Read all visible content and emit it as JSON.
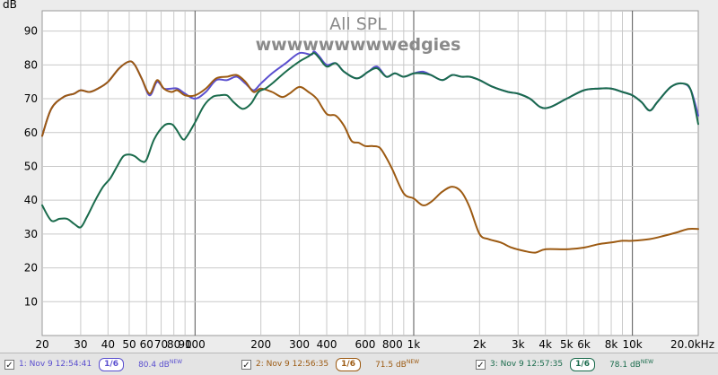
{
  "chart_data": {
    "type": "line",
    "title": "All SPL",
    "subtitle": "wwwwwwwwwedgies",
    "ylabel": "dB",
    "xlabel": "",
    "xscale": "log",
    "xlim": [
      20,
      20000
    ],
    "ylim": [
      0,
      96
    ],
    "grid": true,
    "y_ticks": [
      10,
      20,
      30,
      40,
      50,
      60,
      70,
      80,
      90
    ],
    "x_ticks": [
      {
        "value": 20,
        "label": "20"
      },
      {
        "value": 30,
        "label": "30"
      },
      {
        "value": 40,
        "label": "40"
      },
      {
        "value": 50,
        "label": "50"
      },
      {
        "value": 60,
        "label": "60"
      },
      {
        "value": 70,
        "label": "70"
      },
      {
        "value": 80,
        "label": "80"
      },
      {
        "value": 90,
        "label": "90"
      },
      {
        "value": 100,
        "label": "100"
      },
      {
        "value": 200,
        "label": "200"
      },
      {
        "value": 300,
        "label": "300"
      },
      {
        "value": 400,
        "label": "400"
      },
      {
        "value": 600,
        "label": "600"
      },
      {
        "value": 800,
        "label": "800"
      },
      {
        "value": 1000,
        "label": "1k"
      },
      {
        "value": 2000,
        "label": "2k"
      },
      {
        "value": 3000,
        "label": "3k"
      },
      {
        "value": 4000,
        "label": "4k"
      },
      {
        "value": 5000,
        "label": "5k"
      },
      {
        "value": 6000,
        "label": "6k"
      },
      {
        "value": 8000,
        "label": "8k"
      },
      {
        "value": 10000,
        "label": "10k"
      },
      {
        "value": 20000,
        "label": "20.0kHz"
      }
    ],
    "series": [
      {
        "name": "1: Nov 9 12:54:41",
        "color": "#5a4fcf",
        "points": [
          [
            20,
            59
          ],
          [
            22,
            67
          ],
          [
            25,
            70.5
          ],
          [
            28,
            71.5
          ],
          [
            30,
            72.5
          ],
          [
            33,
            72
          ],
          [
            36,
            73
          ],
          [
            40,
            75
          ],
          [
            45,
            79
          ],
          [
            50,
            81
          ],
          [
            53,
            80
          ],
          [
            57,
            76
          ],
          [
            62,
            71
          ],
          [
            67,
            75
          ],
          [
            72,
            73
          ],
          [
            78,
            73
          ],
          [
            83,
            73
          ],
          [
            90,
            71.5
          ],
          [
            100,
            70
          ],
          [
            112,
            72
          ],
          [
            125,
            75.5
          ],
          [
            140,
            75.5
          ],
          [
            155,
            76.5
          ],
          [
            170,
            74.5
          ],
          [
            185,
            72.5
          ],
          [
            200,
            74.5
          ],
          [
            225,
            77.5
          ],
          [
            260,
            80.5
          ],
          [
            300,
            83.5
          ],
          [
            340,
            83
          ],
          [
            350,
            84
          ],
          [
            370,
            82.5
          ],
          [
            400,
            80
          ],
          [
            440,
            80.5
          ],
          [
            480,
            78
          ],
          [
            550,
            76
          ],
          [
            620,
            78
          ],
          [
            680,
            79.5
          ],
          [
            750,
            76.5
          ],
          [
            820,
            77.5
          ],
          [
            900,
            76.5
          ],
          [
            1000,
            77.5
          ],
          [
            1100,
            78
          ],
          [
            1200,
            77
          ],
          [
            1350,
            75.5
          ],
          [
            1500,
            77
          ],
          [
            1650,
            76.5
          ],
          [
            1800,
            76.5
          ],
          [
            2000,
            75.5
          ],
          [
            2300,
            73.5
          ],
          [
            2700,
            72
          ],
          [
            3000,
            71.5
          ],
          [
            3400,
            70
          ],
          [
            3800,
            67.5
          ],
          [
            4200,
            67.5
          ],
          [
            5000,
            70
          ],
          [
            6000,
            72.5
          ],
          [
            7000,
            73
          ],
          [
            8000,
            73
          ],
          [
            9000,
            72
          ],
          [
            10000,
            71
          ],
          [
            11000,
            69
          ],
          [
            12000,
            66.5
          ],
          [
            13000,
            69
          ],
          [
            15000,
            73.5
          ],
          [
            17000,
            74.5
          ],
          [
            18500,
            72.5
          ],
          [
            20000,
            65
          ]
        ]
      },
      {
        "name": "2: Nov 9 12:56:35",
        "color": "#9c5a12",
        "points": [
          [
            20,
            59
          ],
          [
            22,
            67
          ],
          [
            25,
            70.5
          ],
          [
            28,
            71.5
          ],
          [
            30,
            72.5
          ],
          [
            33,
            72
          ],
          [
            36,
            73
          ],
          [
            40,
            75
          ],
          [
            45,
            79
          ],
          [
            50,
            81
          ],
          [
            53,
            80
          ],
          [
            57,
            76
          ],
          [
            62,
            71.5
          ],
          [
            67,
            75.5
          ],
          [
            72,
            73
          ],
          [
            78,
            72
          ],
          [
            83,
            72.5
          ],
          [
            90,
            71
          ],
          [
            100,
            71
          ],
          [
            112,
            73
          ],
          [
            125,
            76
          ],
          [
            140,
            76.5
          ],
          [
            155,
            77
          ],
          [
            170,
            75
          ],
          [
            185,
            72
          ],
          [
            200,
            73
          ],
          [
            225,
            72
          ],
          [
            250,
            70.5
          ],
          [
            270,
            71.5
          ],
          [
            300,
            73.5
          ],
          [
            330,
            72
          ],
          [
            360,
            70
          ],
          [
            400,
            65.5
          ],
          [
            440,
            65
          ],
          [
            480,
            62
          ],
          [
            520,
            57.5
          ],
          [
            560,
            57
          ],
          [
            600,
            56
          ],
          [
            650,
            56
          ],
          [
            700,
            55.5
          ],
          [
            750,
            52.5
          ],
          [
            800,
            49
          ],
          [
            900,
            42
          ],
          [
            1000,
            40.5
          ],
          [
            1100,
            38.5
          ],
          [
            1200,
            39.5
          ],
          [
            1350,
            42.5
          ],
          [
            1500,
            44
          ],
          [
            1650,
            42.5
          ],
          [
            1800,
            38
          ],
          [
            2000,
            30
          ],
          [
            2200,
            28.5
          ],
          [
            2500,
            27.5
          ],
          [
            2800,
            26
          ],
          [
            3200,
            25
          ],
          [
            3600,
            24.5
          ],
          [
            4000,
            25.5
          ],
          [
            5000,
            25.5
          ],
          [
            6000,
            26
          ],
          [
            7000,
            27
          ],
          [
            8000,
            27.5
          ],
          [
            9000,
            28
          ],
          [
            10000,
            28
          ],
          [
            12000,
            28.5
          ],
          [
            14000,
            29.5
          ],
          [
            16000,
            30.5
          ],
          [
            18000,
            31.5
          ],
          [
            20000,
            31.5
          ]
        ]
      },
      {
        "name": "3: Nov 9 12:57:35",
        "color": "#1a6b4c",
        "points": [
          [
            20,
            38.5
          ],
          [
            22,
            34
          ],
          [
            24,
            34.5
          ],
          [
            26,
            34.5
          ],
          [
            28,
            33
          ],
          [
            30,
            32
          ],
          [
            32,
            35
          ],
          [
            35,
            40
          ],
          [
            38,
            44
          ],
          [
            41,
            46.5
          ],
          [
            44,
            50
          ],
          [
            47,
            53
          ],
          [
            50,
            53.5
          ],
          [
            53,
            53
          ],
          [
            57,
            51.5
          ],
          [
            60,
            52
          ],
          [
            65,
            58
          ],
          [
            72,
            62
          ],
          [
            78,
            62.5
          ],
          [
            82,
            61
          ],
          [
            88,
            58
          ],
          [
            92,
            59
          ],
          [
            100,
            63
          ],
          [
            110,
            68
          ],
          [
            120,
            70.5
          ],
          [
            130,
            71
          ],
          [
            140,
            71
          ],
          [
            150,
            69
          ],
          [
            165,
            67
          ],
          [
            180,
            68.5
          ],
          [
            195,
            72
          ],
          [
            210,
            73
          ],
          [
            230,
            75
          ],
          [
            260,
            78
          ],
          [
            300,
            81
          ],
          [
            330,
            82.5
          ],
          [
            350,
            83.5
          ],
          [
            370,
            82
          ],
          [
            400,
            79.5
          ],
          [
            440,
            80.5
          ],
          [
            480,
            78
          ],
          [
            550,
            76
          ],
          [
            620,
            78
          ],
          [
            680,
            79
          ],
          [
            750,
            76.5
          ],
          [
            820,
            77.5
          ],
          [
            900,
            76.5
          ],
          [
            1000,
            77.5
          ],
          [
            1100,
            77.5
          ],
          [
            1200,
            77
          ],
          [
            1350,
            75.5
          ],
          [
            1500,
            77
          ],
          [
            1650,
            76.5
          ],
          [
            1800,
            76.5
          ],
          [
            2000,
            75.5
          ],
          [
            2300,
            73.5
          ],
          [
            2700,
            72
          ],
          [
            3000,
            71.5
          ],
          [
            3400,
            70
          ],
          [
            3800,
            67.5
          ],
          [
            4200,
            67.5
          ],
          [
            5000,
            70
          ],
          [
            6000,
            72.5
          ],
          [
            7000,
            73
          ],
          [
            8000,
            73
          ],
          [
            9000,
            72
          ],
          [
            10000,
            71
          ],
          [
            11000,
            69
          ],
          [
            12000,
            66.5
          ],
          [
            13000,
            69
          ],
          [
            15000,
            73.5
          ],
          [
            17000,
            74.5
          ],
          [
            18500,
            72.5
          ],
          [
            20000,
            62.5
          ]
        ]
      }
    ]
  },
  "legend": [
    {
      "check": "✓",
      "label": "1: Nov 9 12:54:41",
      "smoothing": "1/6",
      "level": "80.4 dB",
      "badge": "NEW",
      "color": "#5a4fcf"
    },
    {
      "check": "✓",
      "label": "2: Nov 9 12:56:35",
      "smoothing": "1/6",
      "level": "71.5 dB",
      "badge": "NEW",
      "color": "#9c5a12"
    },
    {
      "check": "✓",
      "label": "3: Nov 9 12:57:35",
      "smoothing": "1/6",
      "level": "78.1 dB",
      "badge": "NEW",
      "color": "#1a6b4c"
    }
  ]
}
